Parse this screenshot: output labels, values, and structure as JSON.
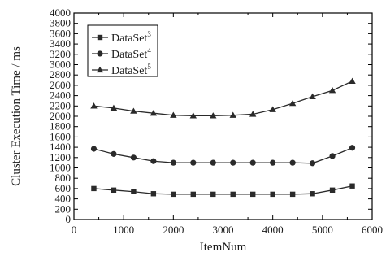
{
  "chart_data": {
    "type": "line",
    "title": "",
    "xlabel": "ItemNum",
    "ylabel": "Cluster Execution Time / ms",
    "xlim": [
      0,
      6000
    ],
    "ylim": [
      0,
      4000
    ],
    "xticks": [
      0,
      1000,
      2000,
      3000,
      4000,
      5000,
      6000
    ],
    "yticks": [
      0,
      200,
      400,
      600,
      800,
      1000,
      1200,
      1400,
      1600,
      1800,
      2000,
      2200,
      2400,
      2600,
      2800,
      3000,
      3200,
      3400,
      3600,
      3800,
      4000
    ],
    "grid": false,
    "legend_position": "top-left",
    "x": [
      400,
      800,
      1200,
      1600,
      2000,
      2400,
      2800,
      3200,
      3600,
      4000,
      4400,
      4800,
      5200,
      5600
    ],
    "series": [
      {
        "name": "DataSet",
        "superscript": "3",
        "marker": "square",
        "values": [
          600,
          570,
          540,
          500,
          490,
          490,
          490,
          490,
          490,
          490,
          490,
          500,
          570,
          650
        ]
      },
      {
        "name": "DataSet",
        "superscript": "4",
        "marker": "circle",
        "values": [
          1370,
          1270,
          1200,
          1130,
          1100,
          1100,
          1100,
          1100,
          1100,
          1100,
          1100,
          1090,
          1230,
          1390
        ]
      },
      {
        "name": "DataSet",
        "superscript": "5",
        "marker": "triangle",
        "values": [
          2200,
          2160,
          2100,
          2060,
          2020,
          2010,
          2010,
          2020,
          2040,
          2130,
          2250,
          2380,
          2500,
          2680
        ]
      }
    ]
  },
  "colors": {
    "line": "#2a2a2a",
    "axis": "#000000"
  }
}
